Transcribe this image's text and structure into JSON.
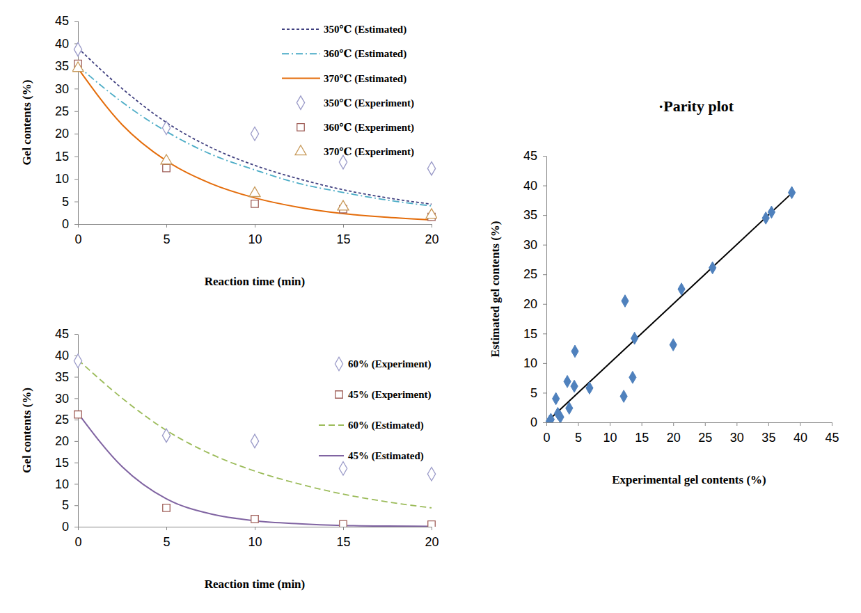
{
  "chart_data": [
    {
      "type": "line",
      "x_label": "Reaction time (min)",
      "y_label": "Gel contents (%)",
      "xlim": [
        0,
        20
      ],
      "xticks": [
        0,
        5,
        10,
        15,
        20
      ],
      "ylim": [
        0,
        45
      ],
      "yticks": [
        0,
        5,
        10,
        15,
        20,
        25,
        30,
        35,
        40,
        45
      ],
      "legend": "upper right",
      "series": [
        {
          "name": "350℃ (Estimated)",
          "type": "line",
          "line_style": "dotted",
          "color": "#3f3f7f",
          "x": [
            0,
            2.5,
            5,
            7.5,
            10,
            12.5,
            15,
            17.5,
            20
          ],
          "values": [
            39.0,
            30.0,
            22.5,
            17.0,
            13.0,
            10.0,
            7.6,
            5.8,
            4.4
          ]
        },
        {
          "name": "360℃ (Estimated)",
          "type": "line",
          "line_style": "dashdot",
          "color": "#4bacc6",
          "x": [
            0,
            2.5,
            5,
            7.5,
            10,
            12.5,
            15,
            17.5,
            20
          ],
          "values": [
            35.0,
            27.0,
            20.5,
            15.5,
            12.0,
            9.0,
            7.0,
            5.3,
            4.0
          ]
        },
        {
          "name": "370℃ (Estimated)",
          "type": "line",
          "line_style": "solid",
          "color": "#e46c0a",
          "x": [
            0,
            2.5,
            5,
            7.5,
            10,
            12.5,
            15,
            17.5,
            20
          ],
          "values": [
            34.5,
            22.0,
            14.0,
            9.0,
            5.8,
            3.7,
            2.3,
            1.5,
            0.9
          ]
        },
        {
          "name": "350℃ (Experiment)",
          "type": "scatter",
          "marker": "open-diamond",
          "color": "#9a9ac8",
          "x": [
            0,
            5,
            10,
            15,
            20
          ],
          "values": [
            38.7,
            21.3,
            20.0,
            13.7,
            12.3
          ]
        },
        {
          "name": "360℃ (Experiment)",
          "type": "scatter",
          "marker": "open-square",
          "color": "#a0605a",
          "x": [
            0,
            5,
            10,
            15,
            20
          ],
          "values": [
            35.5,
            12.4,
            4.5,
            3.3,
            1.6
          ]
        },
        {
          "name": "370℃ (Experiment)",
          "type": "scatter",
          "marker": "open-triangle",
          "color": "#c89a5a",
          "x": [
            0,
            5,
            10,
            15,
            20
          ],
          "values": [
            34.5,
            14.0,
            6.8,
            3.8,
            2.0
          ]
        }
      ]
    },
    {
      "type": "line",
      "x_label": "Reaction time (min)",
      "y_label": "Gel contents (%)",
      "xlim": [
        0,
        20
      ],
      "xticks": [
        0,
        5,
        10,
        15,
        20
      ],
      "ylim": [
        0,
        45
      ],
      "yticks": [
        0,
        5,
        10,
        15,
        20,
        25,
        30,
        35,
        40,
        45
      ],
      "legend": "upper right",
      "series": [
        {
          "name": "60% (Experiment)",
          "type": "scatter",
          "marker": "open-diamond",
          "color": "#9a9ac8",
          "x": [
            0,
            5,
            10,
            15,
            20
          ],
          "values": [
            38.7,
            21.3,
            20.0,
            13.6,
            12.3
          ]
        },
        {
          "name": "45% (Experiment)",
          "type": "scatter",
          "marker": "open-square",
          "color": "#a0605a",
          "x": [
            0,
            5,
            10,
            15,
            20
          ],
          "values": [
            26.2,
            4.4,
            1.8,
            0.6,
            0.5
          ]
        },
        {
          "name": "60% (Estimated)",
          "type": "line",
          "line_style": "dashed",
          "color": "#9bbb59",
          "x": [
            0,
            2.5,
            5,
            7.5,
            10,
            12.5,
            15,
            17.5,
            20
          ],
          "values": [
            39.0,
            30.0,
            22.5,
            17.0,
            13.0,
            10.0,
            7.6,
            5.8,
            4.4
          ]
        },
        {
          "name": "45% (Estimated)",
          "type": "line",
          "line_style": "solid",
          "color": "#8064a2",
          "x": [
            0,
            2.5,
            5,
            7.5,
            10,
            12.5,
            15,
            17.5,
            20
          ],
          "values": [
            26.5,
            14.0,
            6.5,
            3.0,
            1.4,
            0.7,
            0.3,
            0.15,
            0.1
          ]
        }
      ]
    },
    {
      "type": "scatter",
      "title": "·Parity plot",
      "x_label": "Experimental gel contents (%)",
      "y_label": "Estimated gel contents (%)",
      "xlim": [
        0,
        45
      ],
      "xticks": [
        0,
        5,
        10,
        15,
        20,
        25,
        30,
        35,
        40,
        45
      ],
      "ylim": [
        0,
        45
      ],
      "yticks": [
        0,
        5,
        10,
        15,
        20,
        25,
        30,
        35,
        40,
        45
      ],
      "series": [
        {
          "type": "line",
          "line_style": "solid",
          "color": "#000000",
          "x": [
            0,
            38.7
          ],
          "values": [
            0,
            38.7
          ]
        },
        {
          "type": "scatter",
          "marker": "diamond",
          "color": "#4f81bd",
          "x": [
            0.5,
            0.7,
            1.5,
            1.8,
            2.2,
            3.3,
            3.6,
            4.4,
            4.5,
            6.8,
            12.2,
            12.4,
            13.6,
            13.9,
            20.0,
            21.3,
            26.2,
            34.6,
            35.5,
            38.7
          ],
          "values": [
            0.2,
            0.5,
            4.0,
            1.5,
            0.9,
            6.9,
            2.4,
            6.1,
            12.0,
            5.8,
            4.4,
            20.5,
            7.6,
            14.2,
            13.1,
            22.5,
            26.1,
            34.5,
            35.5,
            38.8
          ]
        }
      ]
    }
  ]
}
